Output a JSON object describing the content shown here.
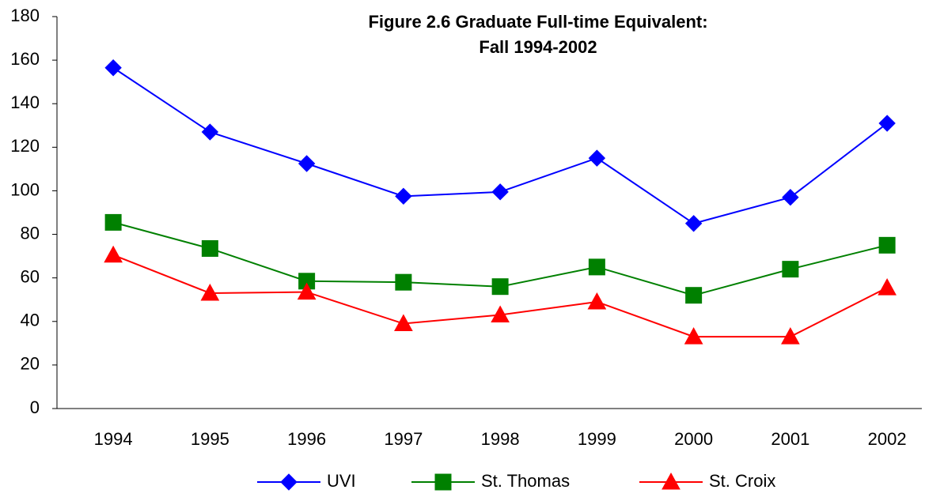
{
  "chart_data": {
    "type": "line",
    "title": [
      "Figure 2.6 Graduate Full-time Equivalent:",
      "Fall 1994-2002"
    ],
    "categories": [
      "1994",
      "1995",
      "1996",
      "1997",
      "1998",
      "1999",
      "2000",
      "2001",
      "2002"
    ],
    "series": [
      {
        "name": "UVI",
        "color": "#0000ff",
        "marker": "diamond",
        "values": [
          156.5,
          127,
          112.5,
          97.5,
          99.5,
          115,
          85,
          97,
          131
        ]
      },
      {
        "name": "St. Thomas",
        "color": "#008000",
        "marker": "square",
        "values": [
          85.5,
          73.5,
          58.5,
          58,
          56,
          65,
          52,
          64,
          75
        ]
      },
      {
        "name": "St. Croix",
        "color": "#ff0000",
        "marker": "triangle",
        "values": [
          70.5,
          53,
          53.5,
          39,
          43,
          49,
          33,
          33,
          55.5
        ]
      }
    ],
    "ylim": [
      0,
      180
    ],
    "yticks": [
      0,
      20,
      40,
      60,
      80,
      100,
      120,
      140,
      160,
      180
    ],
    "grid": false,
    "legend": "bottom"
  }
}
